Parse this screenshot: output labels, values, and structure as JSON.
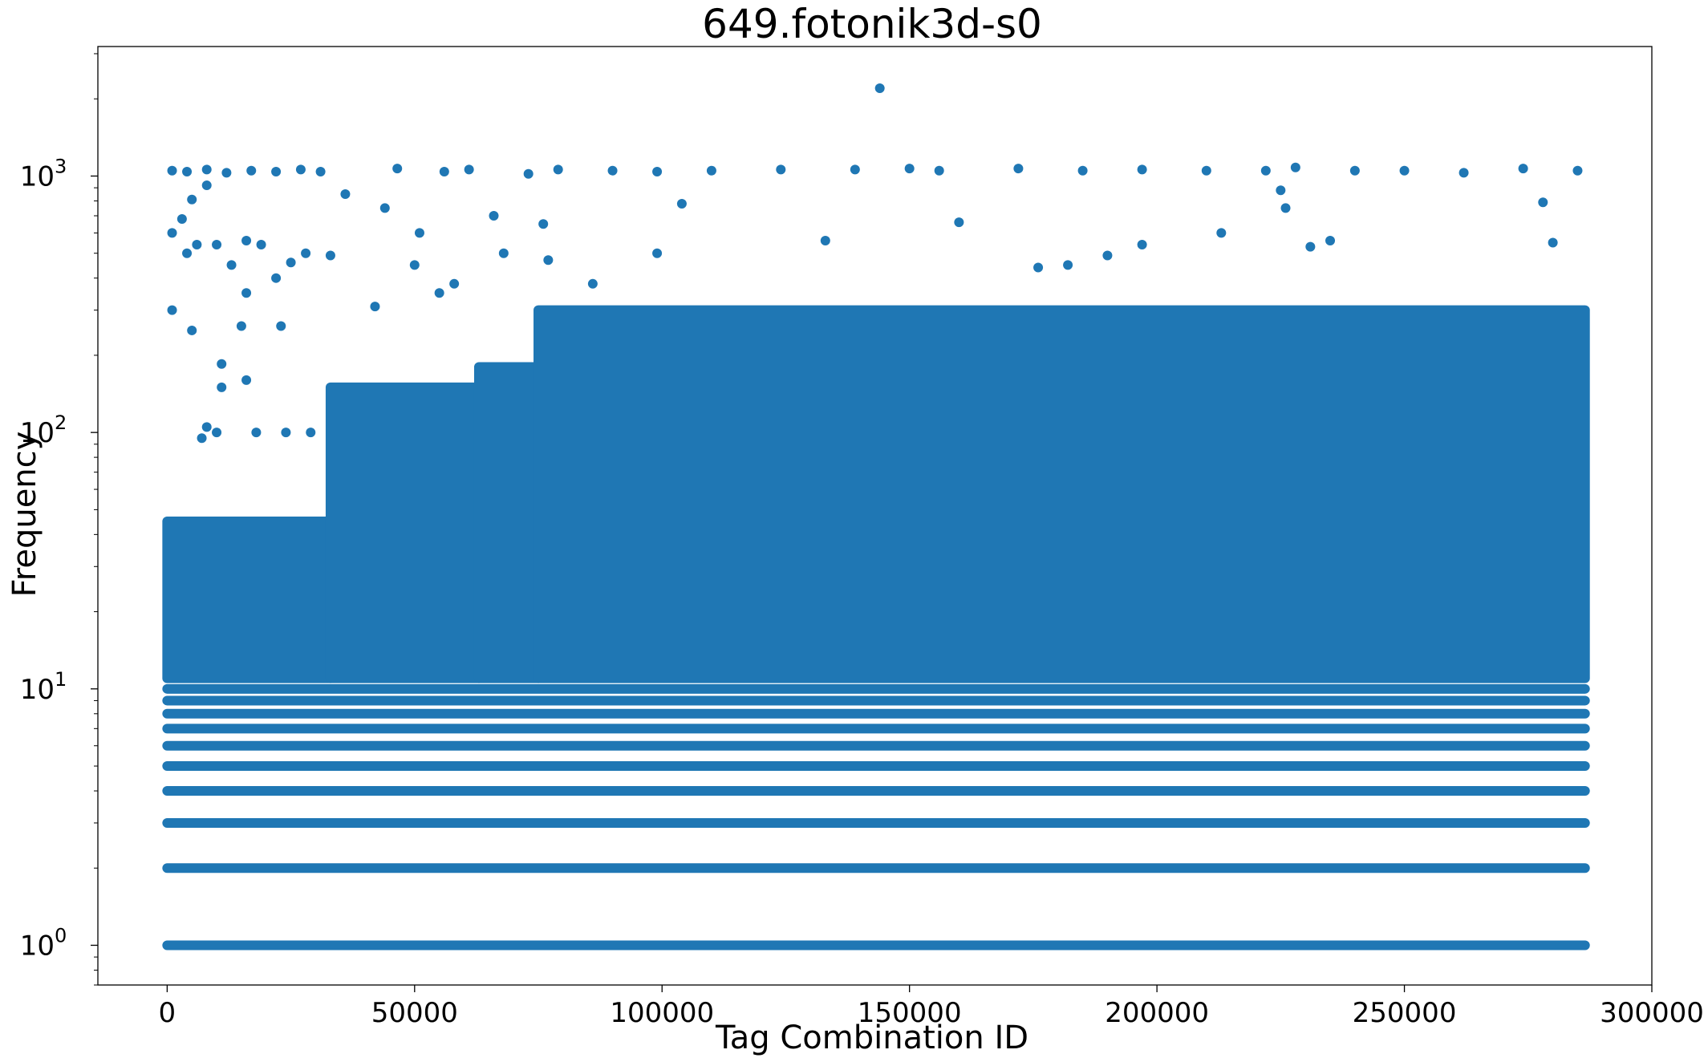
{
  "chart_data": {
    "type": "scatter",
    "title": "649.fotonik3d-s0",
    "xlabel": "Tag Combination ID",
    "ylabel": "Frequency",
    "xlim": [
      -14000,
      300000
    ],
    "ylim": [
      0.7,
      3200
    ],
    "yscale": "log",
    "grid": false,
    "legend": "none",
    "color": "#1f77b4",
    "x_ticks": [
      {
        "value": 0,
        "label": "0"
      },
      {
        "value": 50000,
        "label": "50000"
      },
      {
        "value": 100000,
        "label": "100000"
      },
      {
        "value": 150000,
        "label": "150000"
      },
      {
        "value": 200000,
        "label": "200000"
      },
      {
        "value": 250000,
        "label": "250000"
      },
      {
        "value": 300000,
        "label": "300000"
      }
    ],
    "y_ticks": [
      {
        "value": 1,
        "base": "10",
        "exp": "0"
      },
      {
        "value": 10,
        "base": "10",
        "exp": "1"
      },
      {
        "value": 100,
        "base": "10",
        "exp": "2"
      },
      {
        "value": 1000,
        "base": "10",
        "exp": "3"
      }
    ],
    "x_range_of_ids": [
      0,
      286500
    ],
    "constant_frequency_bands": [
      1,
      2,
      3,
      4,
      5,
      6,
      7,
      8,
      9,
      10
    ],
    "dense_regions": [
      {
        "x": [
          0,
          33000
        ],
        "y": [
          11,
          45
        ]
      },
      {
        "x": [
          33000,
          63000
        ],
        "y": [
          11,
          150
        ]
      },
      {
        "x": [
          63000,
          75000
        ],
        "y": [
          11,
          180
        ]
      },
      {
        "x": [
          75000,
          286500
        ],
        "y": [
          11,
          300
        ]
      }
    ],
    "outliers": [
      {
        "x": 144000,
        "y": 2200
      },
      {
        "x": 1000,
        "y": 1050
      },
      {
        "x": 4000,
        "y": 1040
      },
      {
        "x": 8000,
        "y": 1060
      },
      {
        "x": 12000,
        "y": 1030
      },
      {
        "x": 17000,
        "y": 1050
      },
      {
        "x": 22000,
        "y": 1040
      },
      {
        "x": 27000,
        "y": 1060
      },
      {
        "x": 31000,
        "y": 1040
      },
      {
        "x": 46500,
        "y": 1070
      },
      {
        "x": 56000,
        "y": 1040
      },
      {
        "x": 61000,
        "y": 1060
      },
      {
        "x": 73000,
        "y": 1020
      },
      {
        "x": 79000,
        "y": 1060
      },
      {
        "x": 90000,
        "y": 1050
      },
      {
        "x": 99000,
        "y": 1040
      },
      {
        "x": 110000,
        "y": 1050
      },
      {
        "x": 124000,
        "y": 1060
      },
      {
        "x": 139000,
        "y": 1060
      },
      {
        "x": 150000,
        "y": 1070
      },
      {
        "x": 156000,
        "y": 1050
      },
      {
        "x": 172000,
        "y": 1070
      },
      {
        "x": 185000,
        "y": 1050
      },
      {
        "x": 197000,
        "y": 1060
      },
      {
        "x": 210000,
        "y": 1050
      },
      {
        "x": 222000,
        "y": 1050
      },
      {
        "x": 228000,
        "y": 1080
      },
      {
        "x": 240000,
        "y": 1050
      },
      {
        "x": 250000,
        "y": 1050
      },
      {
        "x": 262000,
        "y": 1030
      },
      {
        "x": 274000,
        "y": 1070
      },
      {
        "x": 285000,
        "y": 1050
      },
      {
        "x": 1000,
        "y": 600
      },
      {
        "x": 3000,
        "y": 680
      },
      {
        "x": 5000,
        "y": 810
      },
      {
        "x": 8000,
        "y": 920
      },
      {
        "x": 4000,
        "y": 500
      },
      {
        "x": 6000,
        "y": 540
      },
      {
        "x": 10000,
        "y": 540
      },
      {
        "x": 13000,
        "y": 450
      },
      {
        "x": 16000,
        "y": 560
      },
      {
        "x": 19000,
        "y": 540
      },
      {
        "x": 22000,
        "y": 400
      },
      {
        "x": 25000,
        "y": 460
      },
      {
        "x": 28000,
        "y": 500
      },
      {
        "x": 33000,
        "y": 490
      },
      {
        "x": 36000,
        "y": 850
      },
      {
        "x": 1000,
        "y": 300
      },
      {
        "x": 5000,
        "y": 250
      },
      {
        "x": 16000,
        "y": 350
      },
      {
        "x": 23000,
        "y": 260
      },
      {
        "x": 15000,
        "y": 260
      },
      {
        "x": 11000,
        "y": 185
      },
      {
        "x": 11000,
        "y": 150
      },
      {
        "x": 16000,
        "y": 160
      },
      {
        "x": 8000,
        "y": 105
      },
      {
        "x": 10000,
        "y": 100
      },
      {
        "x": 18000,
        "y": 100
      },
      {
        "x": 24000,
        "y": 100
      },
      {
        "x": 29000,
        "y": 100
      },
      {
        "x": 7000,
        "y": 95
      },
      {
        "x": 42000,
        "y": 310
      },
      {
        "x": 44000,
        "y": 750
      },
      {
        "x": 50000,
        "y": 450
      },
      {
        "x": 51000,
        "y": 600
      },
      {
        "x": 55000,
        "y": 350
      },
      {
        "x": 58000,
        "y": 380
      },
      {
        "x": 66000,
        "y": 700
      },
      {
        "x": 68000,
        "y": 500
      },
      {
        "x": 76000,
        "y": 650
      },
      {
        "x": 77000,
        "y": 470
      },
      {
        "x": 86000,
        "y": 380
      },
      {
        "x": 99000,
        "y": 500
      },
      {
        "x": 104000,
        "y": 780
      },
      {
        "x": 133000,
        "y": 560
      },
      {
        "x": 160000,
        "y": 660
      },
      {
        "x": 176000,
        "y": 440
      },
      {
        "x": 182000,
        "y": 450
      },
      {
        "x": 190000,
        "y": 490
      },
      {
        "x": 197000,
        "y": 540
      },
      {
        "x": 213000,
        "y": 600
      },
      {
        "x": 225000,
        "y": 880
      },
      {
        "x": 226000,
        "y": 750
      },
      {
        "x": 231000,
        "y": 530
      },
      {
        "x": 235000,
        "y": 560
      },
      {
        "x": 278000,
        "y": 790
      },
      {
        "x": 280000,
        "y": 550
      }
    ]
  }
}
